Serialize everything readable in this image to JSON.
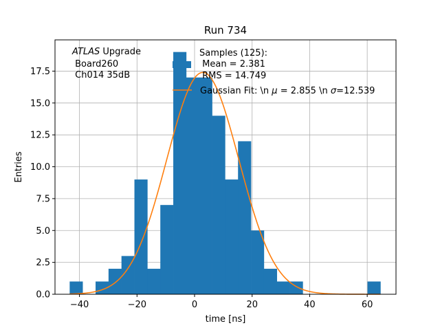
{
  "chart_data": {
    "type": "histogram",
    "title": "Run 734",
    "xlabel": "time [ns]",
    "ylabel": "Entries",
    "xlim": [
      -48.5,
      70
    ],
    "ylim": [
      0,
      19.95
    ],
    "x_ticks": [
      -40,
      -20,
      0,
      20,
      40,
      60
    ],
    "y_ticks": [
      0.0,
      2.5,
      5.0,
      7.5,
      10.0,
      12.5,
      15.0,
      17.5
    ],
    "grid": true,
    "bar_color": "#1f77b4",
    "fit_color": "#ff7f0e",
    "bin_edges": [
      -43.4,
      -38.9,
      -34.4,
      -29.9,
      -25.4,
      -20.9,
      -16.4,
      -11.9,
      -7.4,
      -2.9,
      1.6,
      6.1,
      10.6,
      15.1,
      19.6,
      24.1,
      28.6,
      33.1,
      37.6,
      42.1,
      46.6,
      51.1,
      55.6,
      60.1,
      64.6
    ],
    "bin_heights": [
      1,
      0,
      1,
      2,
      3,
      9,
      2,
      7,
      19,
      17,
      17,
      14,
      9,
      12,
      5,
      2,
      1,
      1,
      0,
      0,
      0,
      0,
      0,
      1
    ],
    "gaussian_fit": {
      "mu": 2.855,
      "sigma": 12.539,
      "amplitude": 17.4
    },
    "annotation_lines": [
      "ATLAS Upgrade",
      " Board260",
      " Ch014 35dB"
    ],
    "legend": {
      "position": "upper-center",
      "samples_lines": [
        "Samples (125):",
        " Mean = 2.381",
        " RMS = 14.749"
      ],
      "fit_prefix": "Gaussian Fit: \\n ",
      "fit_mu": "μ",
      "fit_mid": " = 2.855 \\n ",
      "fit_sigma": "σ",
      "fit_suffix": "=12.539"
    }
  }
}
